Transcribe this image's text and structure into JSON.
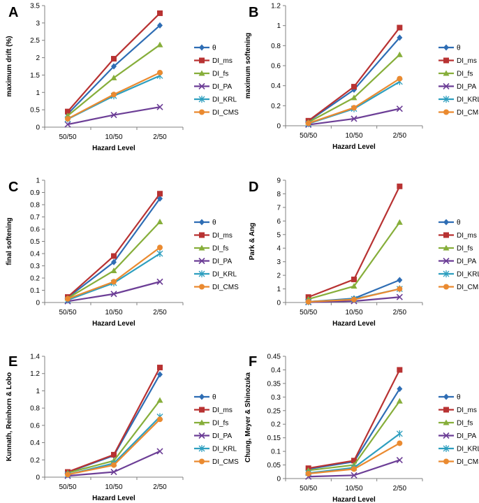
{
  "legend_labels": [
    "θ",
    "DI_ms",
    "DI_fs",
    "DI_PA",
    "DI_KRL",
    "DI_CMS"
  ],
  "series_colors": [
    "#2E6DB4",
    "#B83232",
    "#86AE3A",
    "#6C3E96",
    "#2E9FBF",
    "#EA8A30"
  ],
  "markers": [
    "diamond",
    "square",
    "triangle",
    "x",
    "star",
    "circle"
  ],
  "chart_data": [
    {
      "panel": "A",
      "type": "line",
      "categories": [
        "50/50",
        "10/50",
        "2/50"
      ],
      "xlabel": "Hazard Level",
      "ylabel": "maximum drift (%)",
      "ylim": [
        0,
        3.5
      ],
      "yticks": [
        0,
        0.5,
        1,
        1.5,
        2,
        2.5,
        3,
        3.5
      ],
      "ytick_labels": [
        "0",
        "0.5",
        "1",
        "1.5",
        "2",
        "2.5",
        "3",
        "3.5"
      ],
      "series": [
        {
          "name": "θ",
          "values": [
            0.38,
            1.75,
            2.93
          ]
        },
        {
          "name": "DI_ms",
          "values": [
            0.45,
            1.97,
            3.28
          ]
        },
        {
          "name": "DI_fs",
          "values": [
            0.33,
            1.42,
            2.37
          ]
        },
        {
          "name": "DI_PA",
          "values": [
            0.08,
            0.35,
            0.58
          ]
        },
        {
          "name": "DI_KRL",
          "values": [
            0.23,
            0.9,
            1.48
          ]
        },
        {
          "name": "DI_CMS",
          "values": [
            0.24,
            0.94,
            1.57
          ]
        }
      ]
    },
    {
      "panel": "B",
      "type": "line",
      "categories": [
        "50/50",
        "10/50",
        "2/50"
      ],
      "xlabel": "Hazard Level",
      "ylabel": "maximum softening",
      "ylim": [
        0,
        1.2
      ],
      "yticks": [
        0,
        0.2,
        0.4,
        0.6,
        0.8,
        1,
        1.2
      ],
      "ytick_labels": [
        "0",
        "0.2",
        "0.4",
        "0.6",
        "0.8",
        "1",
        "1.2"
      ],
      "series": [
        {
          "name": "θ",
          "values": [
            0.045,
            0.36,
            0.88
          ]
        },
        {
          "name": "DI_ms",
          "values": [
            0.05,
            0.39,
            0.98
          ]
        },
        {
          "name": "DI_fs",
          "values": [
            0.035,
            0.28,
            0.71
          ]
        },
        {
          "name": "DI_PA",
          "values": [
            0.01,
            0.07,
            0.17
          ]
        },
        {
          "name": "DI_KRL",
          "values": [
            0.02,
            0.17,
            0.44
          ]
        },
        {
          "name": "DI_CMS",
          "values": [
            0.025,
            0.18,
            0.47
          ]
        }
      ]
    },
    {
      "panel": "C",
      "type": "line",
      "categories": [
        "50/50",
        "10/50",
        "2/50"
      ],
      "xlabel": "Hazard Level",
      "ylabel": "final softening",
      "ylim": [
        0,
        1
      ],
      "yticks": [
        0,
        0.1,
        0.2,
        0.3,
        0.4,
        0.5,
        0.6,
        0.7,
        0.8,
        0.9,
        1
      ],
      "ytick_labels": [
        "0",
        "0.1",
        "0.2",
        "0.3",
        "0.4",
        "0.5",
        "0.6",
        "0.7",
        "0.8",
        "0.9",
        "1"
      ],
      "series": [
        {
          "name": "θ",
          "values": [
            0.04,
            0.33,
            0.85
          ]
        },
        {
          "name": "DI_ms",
          "values": [
            0.045,
            0.38,
            0.89
          ]
        },
        {
          "name": "DI_fs",
          "values": [
            0.035,
            0.26,
            0.66
          ]
        },
        {
          "name": "DI_PA",
          "values": [
            0.01,
            0.07,
            0.17
          ]
        },
        {
          "name": "DI_KRL",
          "values": [
            0.02,
            0.16,
            0.4
          ]
        },
        {
          "name": "DI_CMS",
          "values": [
            0.03,
            0.17,
            0.45
          ]
        }
      ]
    },
    {
      "panel": "D",
      "type": "line",
      "categories": [
        "50/50",
        "10/50",
        "2/50"
      ],
      "xlabel": "Hazard Level",
      "ylabel": "Park & Ang",
      "ylim": [
        0,
        9
      ],
      "yticks": [
        0,
        1,
        2,
        3,
        4,
        5,
        6,
        7,
        8,
        9
      ],
      "ytick_labels": [
        "0",
        "1",
        "2",
        "3",
        "4",
        "5",
        "6",
        "7",
        "8",
        "9"
      ],
      "series": [
        {
          "name": "θ",
          "values": [
            0.05,
            0.3,
            1.65
          ]
        },
        {
          "name": "DI_ms",
          "values": [
            0.4,
            1.7,
            8.55
          ]
        },
        {
          "name": "DI_fs",
          "values": [
            0.25,
            1.2,
            5.9
          ]
        },
        {
          "name": "DI_PA",
          "values": [
            0.02,
            0.1,
            0.4
          ]
        },
        {
          "name": "DI_KRL",
          "values": [
            0.05,
            0.25,
            1.0
          ]
        },
        {
          "name": "DI_CMS",
          "values": [
            0.05,
            0.22,
            1.0
          ]
        }
      ]
    },
    {
      "panel": "E",
      "type": "line",
      "categories": [
        "50/50",
        "10/50",
        "2/50"
      ],
      "xlabel": "Hazard Level",
      "ylabel": "Kunnath, Reinhorn & Lobo",
      "ylim": [
        0,
        1.4
      ],
      "yticks": [
        0,
        0.2,
        0.4,
        0.6,
        0.8,
        1,
        1.2,
        1.4
      ],
      "ytick_labels": [
        "0",
        "0.2",
        "0.4",
        "0.6",
        "0.8",
        "1",
        "1.2",
        "1.4"
      ],
      "series": [
        {
          "name": "θ",
          "values": [
            0.055,
            0.25,
            1.19
          ]
        },
        {
          "name": "DI_ms",
          "values": [
            0.06,
            0.26,
            1.27
          ]
        },
        {
          "name": "DI_fs",
          "values": [
            0.05,
            0.19,
            0.89
          ]
        },
        {
          "name": "DI_PA",
          "values": [
            0.015,
            0.06,
            0.3
          ]
        },
        {
          "name": "DI_KRL",
          "values": [
            0.03,
            0.16,
            0.7
          ]
        },
        {
          "name": "DI_CMS",
          "values": [
            0.03,
            0.14,
            0.67
          ]
        }
      ]
    },
    {
      "panel": "F",
      "type": "line",
      "categories": [
        "50/50",
        "10/50",
        "2/50"
      ],
      "xlabel": "Hazard Level",
      "ylabel": "Chung, Meyer & Shinozuka",
      "ylim": [
        0,
        0.45
      ],
      "yticks": [
        0,
        0.05,
        0.1,
        0.15,
        0.2,
        0.25,
        0.3,
        0.35,
        0.4,
        0.45
      ],
      "ytick_labels": [
        "0",
        "0.05",
        "0.1",
        "0.15",
        "0.2",
        "0.25",
        "0.3",
        "0.35",
        "0.4",
        "0.45"
      ],
      "series": [
        {
          "name": "θ",
          "values": [
            0.035,
            0.062,
            0.33
          ]
        },
        {
          "name": "DI_ms",
          "values": [
            0.038,
            0.066,
            0.4
          ]
        },
        {
          "name": "DI_fs",
          "values": [
            0.03,
            0.05,
            0.285
          ]
        },
        {
          "name": "DI_PA",
          "values": [
            0.007,
            0.012,
            0.068
          ]
        },
        {
          "name": "DI_KRL",
          "values": [
            0.02,
            0.04,
            0.165
          ]
        },
        {
          "name": "DI_CMS",
          "values": [
            0.018,
            0.035,
            0.13
          ]
        }
      ]
    }
  ]
}
